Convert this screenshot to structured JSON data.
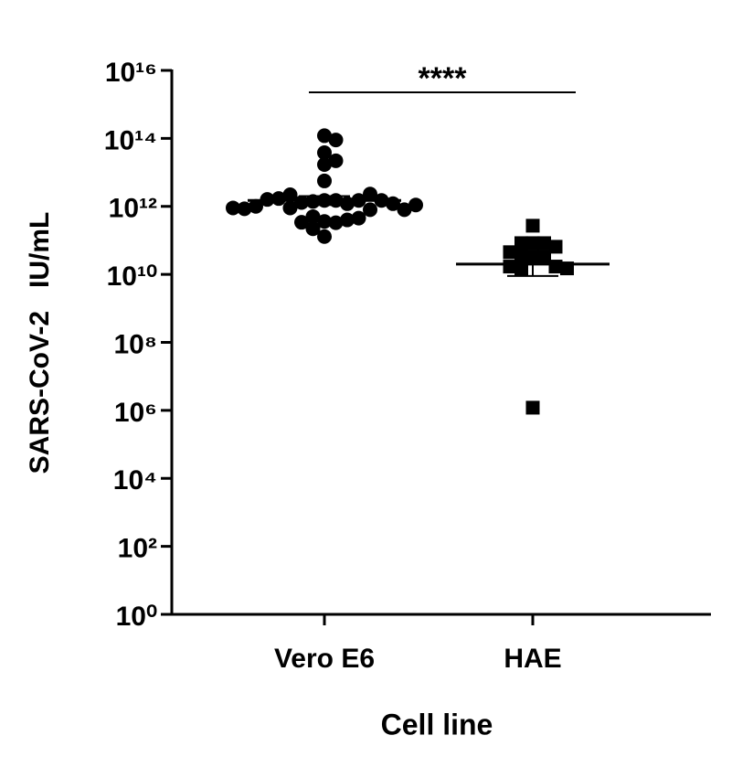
{
  "chart_data": {
    "type": "dot",
    "xlabel": "Cell line",
    "ylabel": "SARS-CoV-2   IU/mL",
    "annotation": "****",
    "categories": [
      "Vero E6",
      "HAE"
    ],
    "log_y": true,
    "color": "#000000",
    "ylim": [
      1,
      1e+16
    ],
    "yticks": [
      {
        "value": 1,
        "label": "10⁰"
      },
      {
        "value": 100.0,
        "label": "10²"
      },
      {
        "value": 10000.0,
        "label": "10⁴"
      },
      {
        "value": 1000000.0,
        "label": "10⁶"
      },
      {
        "value": 100000000.0,
        "label": "10⁸"
      },
      {
        "value": 10000000000.0,
        "label": "10¹⁰"
      },
      {
        "value": 1000000000000.0,
        "label": "10¹²"
      },
      {
        "value": 100000000000000.0,
        "label": "10¹⁴"
      },
      {
        "value": 1e+16,
        "label": "10¹⁶"
      }
    ],
    "groups": [
      {
        "marker": "circle",
        "values": [
          120000000000000.0,
          90000000000000.0,
          38000000000000.0,
          22000000000000.0,
          17000000000000.0,
          5600000000000.0,
          1500000000000.0,
          1500000000000.0,
          1400000000000.0,
          1200000000000.0,
          1300000000000.0,
          1500000000000.0,
          2200000000000.0,
          2300000000000.0,
          1700000000000.0,
          1500000000000.0,
          1600000000000.0,
          1200000000000.0,
          900000000000.0,
          800000000000.0,
          1000000000000.0,
          800000000000.0,
          850000000000.0,
          1100000000000.0,
          900000000000.0,
          360000000000.0,
          330000000000.0,
          220000000000.0,
          400000000000.0,
          340000000000.0,
          450000000000.0,
          500000000000.0,
          130000000000.0
        ],
        "mean": 1500000000000.0,
        "error_lower": 1100000000000.0,
        "error_upper": 2000000000000.0
      },
      {
        "marker": "square",
        "values": [
          270000000000.0,
          83000000000.0,
          83000000000.0,
          83000000000.0,
          31000000000.0,
          30000000000.0,
          35000000000.0,
          65000000000.0,
          45000000000.0,
          17000000000.0,
          17000000000.0,
          15000000000.0,
          15000000000.0,
          1200000.0
        ],
        "mean": 20000000000.0,
        "error_lower": 9000000000.0,
        "error_upper": 50000000000.0
      }
    ]
  }
}
